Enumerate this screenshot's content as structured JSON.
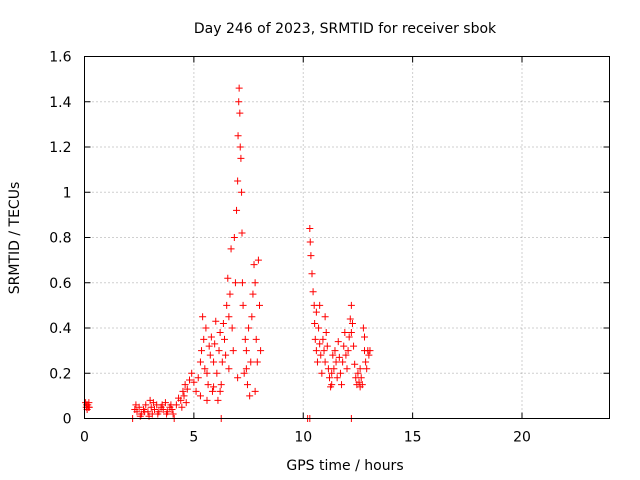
{
  "chart_data": {
    "type": "scatter",
    "title": "Day 246 of 2023, SRMTID for receiver sbok",
    "xlabel": "GPS time / hours",
    "ylabel": "SRMTID / TECUs",
    "xlim": [
      0,
      24
    ],
    "ylim": [
      0,
      1.6
    ],
    "xticks": [
      0,
      5,
      10,
      15,
      20
    ],
    "yticks": [
      0,
      0.2,
      0.4,
      0.6,
      0.8,
      1,
      1.2,
      1.4,
      1.6
    ],
    "grid": true,
    "marker": "plus",
    "marker_color": "#ff0000",
    "series": [
      {
        "name": "SRMTID",
        "points": [
          [
            0.05,
            0.07
          ],
          [
            0.08,
            0.05
          ],
          [
            0.1,
            0.06
          ],
          [
            0.12,
            0.04
          ],
          [
            0.15,
            0.06
          ],
          [
            0.18,
            0.05
          ],
          [
            0.2,
            0.07
          ],
          [
            0.22,
            0.05
          ],
          [
            2.3,
            0.04
          ],
          [
            2.4,
            0.03
          ],
          [
            2.5,
            0.05
          ],
          [
            2.6,
            0.02
          ],
          [
            2.7,
            0.04
          ],
          [
            2.8,
            0.06
          ],
          [
            2.9,
            0.03
          ],
          [
            3.0,
            0.08
          ],
          [
            3.05,
            0.05
          ],
          [
            3.1,
            0.02
          ],
          [
            3.2,
            0.04
          ],
          [
            3.3,
            0.06
          ],
          [
            3.4,
            0.03
          ],
          [
            3.5,
            0.05
          ],
          [
            3.6,
            0.04
          ],
          [
            3.7,
            0.07
          ],
          [
            3.8,
            0.03
          ],
          [
            3.9,
            0.05
          ],
          [
            4.0,
            0.04
          ],
          [
            4.05,
            0.02
          ],
          [
            2.35,
            0.06
          ],
          [
            2.55,
            0.01
          ],
          [
            2.75,
            0.03
          ],
          [
            2.95,
            0.01
          ],
          [
            3.15,
            0.07
          ],
          [
            3.35,
            0.02
          ],
          [
            3.55,
            0.06
          ],
          [
            3.75,
            0.02
          ],
          [
            3.95,
            0.06
          ],
          [
            4.2,
            0.06
          ],
          [
            4.3,
            0.09
          ],
          [
            4.4,
            0.08
          ],
          [
            4.5,
            0.12
          ],
          [
            4.55,
            0.1
          ],
          [
            4.6,
            0.15
          ],
          [
            4.7,
            0.13
          ],
          [
            4.8,
            0.17
          ],
          [
            4.9,
            0.2
          ],
          [
            5.0,
            0.16
          ],
          [
            4.45,
            0.05
          ],
          [
            4.65,
            0.07
          ],
          [
            5.1,
            0.12
          ],
          [
            5.2,
            0.18
          ],
          [
            5.3,
            0.25
          ],
          [
            5.35,
            0.3
          ],
          [
            5.4,
            0.45
          ],
          [
            5.45,
            0.35
          ],
          [
            5.5,
            0.22
          ],
          [
            5.55,
            0.4
          ],
          [
            5.6,
            0.2
          ],
          [
            5.65,
            0.15
          ],
          [
            5.7,
            0.32
          ],
          [
            5.75,
            0.28
          ],
          [
            5.8,
            0.36
          ],
          [
            5.85,
            0.12
          ],
          [
            5.9,
            0.25
          ],
          [
            5.95,
            0.33
          ],
          [
            6.0,
            0.43
          ],
          [
            6.05,
            0.2
          ],
          [
            6.1,
            0.08
          ],
          [
            6.15,
            0.3
          ],
          [
            6.2,
            0.38
          ],
          [
            6.25,
            0.15
          ],
          [
            6.3,
            0.25
          ],
          [
            6.35,
            0.42
          ],
          [
            6.4,
            0.35
          ],
          [
            6.45,
            0.28
          ],
          [
            6.5,
            0.5
          ],
          [
            6.55,
            0.62
          ],
          [
            6.6,
            0.45
          ],
          [
            6.65,
            0.55
          ],
          [
            6.7,
            0.75
          ],
          [
            6.75,
            0.4
          ],
          [
            6.8,
            0.3
          ],
          [
            6.85,
            0.8
          ],
          [
            6.9,
            0.6
          ],
          [
            6.95,
            0.92
          ],
          [
            7.0,
            1.05
          ],
          [
            7.02,
            1.25
          ],
          [
            7.05,
            1.4
          ],
          [
            7.07,
            1.46
          ],
          [
            7.1,
            1.35
          ],
          [
            7.12,
            1.2
          ],
          [
            7.15,
            1.15
          ],
          [
            7.18,
            1.0
          ],
          [
            7.2,
            0.82
          ],
          [
            7.22,
            0.6
          ],
          [
            7.25,
            0.5
          ],
          [
            7.3,
            0.2
          ],
          [
            7.35,
            0.35
          ],
          [
            7.4,
            0.3
          ],
          [
            7.45,
            0.15
          ],
          [
            7.5,
            0.4
          ],
          [
            7.55,
            0.1
          ],
          [
            7.6,
            0.25
          ],
          [
            7.65,
            0.45
          ],
          [
            7.7,
            0.55
          ],
          [
            7.75,
            0.68
          ],
          [
            7.8,
            0.6
          ],
          [
            7.85,
            0.35
          ],
          [
            7.9,
            0.25
          ],
          [
            7.95,
            0.7
          ],
          [
            8.0,
            0.5
          ],
          [
            8.05,
            0.3
          ],
          [
            5.3,
            0.1
          ],
          [
            5.6,
            0.08
          ],
          [
            5.9,
            0.14
          ],
          [
            6.2,
            0.12
          ],
          [
            6.6,
            0.22
          ],
          [
            7.0,
            0.18
          ],
          [
            7.4,
            0.22
          ],
          [
            7.8,
            0.12
          ],
          [
            10.3,
            0.84
          ],
          [
            10.32,
            0.78
          ],
          [
            10.35,
            0.72
          ],
          [
            10.4,
            0.64
          ],
          [
            10.45,
            0.56
          ],
          [
            10.5,
            0.5
          ],
          [
            10.52,
            0.42
          ],
          [
            10.55,
            0.35
          ],
          [
            10.6,
            0.3
          ],
          [
            10.65,
            0.25
          ],
          [
            10.7,
            0.4
          ],
          [
            10.75,
            0.33
          ],
          [
            10.8,
            0.28
          ],
          [
            10.85,
            0.2
          ],
          [
            10.9,
            0.35
          ],
          [
            10.95,
            0.3
          ],
          [
            11.0,
            0.25
          ],
          [
            11.05,
            0.38
          ],
          [
            11.1,
            0.32
          ],
          [
            11.15,
            0.22
          ],
          [
            11.2,
            0.18
          ],
          [
            11.25,
            0.14
          ],
          [
            11.3,
            0.2
          ],
          [
            11.35,
            0.28
          ],
          [
            11.4,
            0.22
          ],
          [
            11.45,
            0.3
          ],
          [
            11.5,
            0.25
          ],
          [
            11.55,
            0.18
          ],
          [
            11.6,
            0.34
          ],
          [
            11.65,
            0.27
          ],
          [
            11.7,
            0.2
          ],
          [
            11.75,
            0.15
          ],
          [
            11.8,
            0.25
          ],
          [
            11.85,
            0.32
          ],
          [
            11.9,
            0.38
          ],
          [
            11.95,
            0.28
          ],
          [
            12.0,
            0.22
          ],
          [
            12.05,
            0.3
          ],
          [
            12.1,
            0.36
          ],
          [
            12.15,
            0.44
          ],
          [
            12.2,
            0.5
          ],
          [
            12.25,
            0.42
          ],
          [
            12.3,
            0.32
          ],
          [
            12.35,
            0.24
          ],
          [
            12.4,
            0.18
          ],
          [
            12.45,
            0.15
          ],
          [
            12.5,
            0.2
          ],
          [
            12.55,
            0.16
          ],
          [
            12.6,
            0.22
          ],
          [
            12.65,
            0.18
          ],
          [
            12.7,
            0.15
          ],
          [
            12.75,
            0.4
          ],
          [
            12.8,
            0.3
          ],
          [
            12.85,
            0.25
          ],
          [
            12.9,
            0.22
          ],
          [
            12.95,
            0.3
          ],
          [
            13.0,
            0.28
          ],
          [
            13.05,
            0.3
          ],
          [
            10.6,
            0.47
          ],
          [
            10.75,
            0.5
          ],
          [
            11.0,
            0.45
          ],
          [
            11.3,
            0.15
          ],
          [
            12.2,
            0.38
          ],
          [
            12.6,
            0.14
          ],
          [
            12.8,
            0.36
          ],
          [
            2.2,
            0
          ],
          [
            4.1,
            0
          ],
          [
            6.25,
            0
          ],
          [
            10.2,
            0
          ],
          [
            10.3,
            0
          ],
          [
            12.2,
            0
          ]
        ]
      }
    ]
  }
}
